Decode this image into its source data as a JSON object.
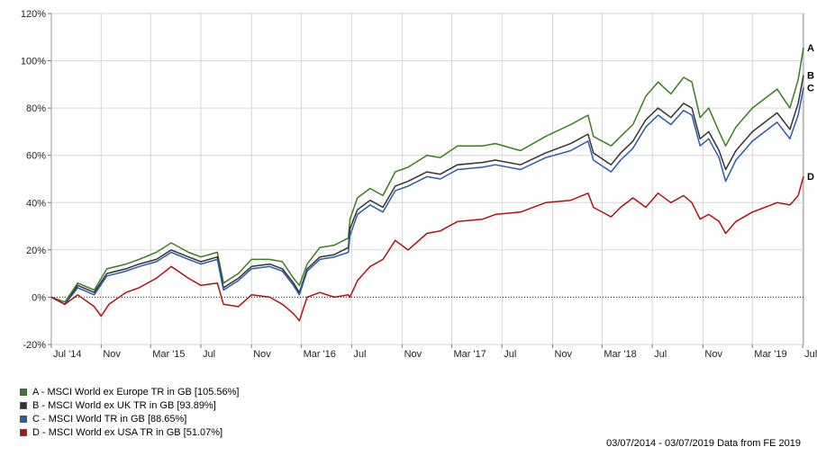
{
  "chart_data": {
    "type": "line",
    "date_range": [
      "2014-07-03",
      "2019-07-03"
    ],
    "ylim": [
      -20,
      120
    ],
    "y_ticks": [
      -20,
      0,
      20,
      40,
      60,
      80,
      100,
      120
    ],
    "y_tick_labels": [
      "-20%",
      "0%",
      "20%",
      "40%",
      "60%",
      "80%",
      "100%",
      "120%"
    ],
    "x_ticks": [
      "2014-07-03",
      "2014-11-01",
      "2015-03-01",
      "2015-07-01",
      "2015-11-01",
      "2016-03-01",
      "2016-07-01",
      "2016-11-01",
      "2017-03-01",
      "2017-07-01",
      "2017-11-01",
      "2018-03-01",
      "2018-07-01",
      "2018-11-01",
      "2019-03-01",
      "2019-07-01"
    ],
    "x_tick_labels": [
      "Jul '14",
      "Nov",
      "Mar '15",
      "Jul",
      "Nov",
      "Mar '16",
      "Jul",
      "Nov",
      "Mar '17",
      "Jul",
      "Nov",
      "Mar '18",
      "Jul",
      "Nov",
      "Mar '19",
      "Jul"
    ],
    "grid": true,
    "legend_position": "bottom-left",
    "series": [
      {
        "name": "A - MSCI World ex Europe TR in GB [105.56%]",
        "end_label": "A",
        "color": "#3a7d1e",
        "points": [
          [
            "2014-07-03",
            0
          ],
          [
            "2014-08-05",
            -2
          ],
          [
            "2014-09-05",
            6
          ],
          [
            "2014-10-15",
            3
          ],
          [
            "2014-11-15",
            12
          ],
          [
            "2014-12-31",
            14
          ],
          [
            "2015-02-01",
            16
          ],
          [
            "2015-03-15",
            19
          ],
          [
            "2015-04-20",
            23
          ],
          [
            "2015-06-01",
            19
          ],
          [
            "2015-07-01",
            17
          ],
          [
            "2015-08-10",
            19
          ],
          [
            "2015-08-25",
            6
          ],
          [
            "2015-09-30",
            10
          ],
          [
            "2015-11-01",
            16
          ],
          [
            "2015-12-15",
            16
          ],
          [
            "2016-01-15",
            15
          ],
          [
            "2016-02-11",
            8
          ],
          [
            "2016-02-25",
            5
          ],
          [
            "2016-03-15",
            14
          ],
          [
            "2016-04-15",
            21
          ],
          [
            "2016-05-20",
            22
          ],
          [
            "2016-06-23",
            25
          ],
          [
            "2016-06-27",
            33
          ],
          [
            "2016-07-15",
            42
          ],
          [
            "2016-08-15",
            46
          ],
          [
            "2016-09-15",
            43
          ],
          [
            "2016-10-15",
            53
          ],
          [
            "2016-11-15",
            55
          ],
          [
            "2016-12-31",
            60
          ],
          [
            "2017-02-01",
            59
          ],
          [
            "2017-03-15",
            64
          ],
          [
            "2017-05-15",
            64
          ],
          [
            "2017-06-15",
            65
          ],
          [
            "2017-08-15",
            62
          ],
          [
            "2017-10-15",
            68
          ],
          [
            "2017-12-15",
            73
          ],
          [
            "2018-01-26",
            77
          ],
          [
            "2018-02-08",
            68
          ],
          [
            "2018-03-23",
            64
          ],
          [
            "2018-04-15",
            68
          ],
          [
            "2018-05-15",
            73
          ],
          [
            "2018-06-15",
            85
          ],
          [
            "2018-07-15",
            91
          ],
          [
            "2018-08-15",
            86
          ],
          [
            "2018-09-15",
            93
          ],
          [
            "2018-10-05",
            91
          ],
          [
            "2018-10-25",
            76
          ],
          [
            "2018-11-15",
            80
          ],
          [
            "2018-12-10",
            70
          ],
          [
            "2018-12-26",
            64
          ],
          [
            "2019-01-20",
            72
          ],
          [
            "2019-03-01",
            80
          ],
          [
            "2019-04-30",
            88
          ],
          [
            "2019-05-31",
            80
          ],
          [
            "2019-06-20",
            92
          ],
          [
            "2019-07-03",
            105.56
          ]
        ]
      },
      {
        "name": "B - MSCI World ex UK TR in GB [93.89%]",
        "end_label": "B",
        "color": "#333333",
        "points": [
          [
            "2014-07-03",
            0
          ],
          [
            "2014-08-05",
            -3
          ],
          [
            "2014-09-05",
            5
          ],
          [
            "2014-10-15",
            2
          ],
          [
            "2014-11-15",
            10
          ],
          [
            "2014-12-31",
            12
          ],
          [
            "2015-02-01",
            14
          ],
          [
            "2015-03-15",
            16
          ],
          [
            "2015-04-20",
            20
          ],
          [
            "2015-06-01",
            17
          ],
          [
            "2015-07-01",
            15
          ],
          [
            "2015-08-10",
            17
          ],
          [
            "2015-08-25",
            4
          ],
          [
            "2015-09-30",
            8
          ],
          [
            "2015-11-01",
            13
          ],
          [
            "2015-12-15",
            14
          ],
          [
            "2016-01-15",
            12
          ],
          [
            "2016-02-11",
            6
          ],
          [
            "2016-02-25",
            2
          ],
          [
            "2016-03-15",
            12
          ],
          [
            "2016-04-15",
            17
          ],
          [
            "2016-05-20",
            18
          ],
          [
            "2016-06-23",
            21
          ],
          [
            "2016-06-27",
            29
          ],
          [
            "2016-07-15",
            37
          ],
          [
            "2016-08-15",
            41
          ],
          [
            "2016-09-15",
            38
          ],
          [
            "2016-10-15",
            47
          ],
          [
            "2016-11-15",
            49
          ],
          [
            "2016-12-31",
            53
          ],
          [
            "2017-02-01",
            52
          ],
          [
            "2017-03-15",
            56
          ],
          [
            "2017-05-15",
            57
          ],
          [
            "2017-06-15",
            58
          ],
          [
            "2017-08-15",
            56
          ],
          [
            "2017-10-15",
            61
          ],
          [
            "2017-12-15",
            65
          ],
          [
            "2018-01-26",
            69
          ],
          [
            "2018-02-08",
            61
          ],
          [
            "2018-03-23",
            56
          ],
          [
            "2018-04-15",
            61
          ],
          [
            "2018-05-15",
            66
          ],
          [
            "2018-06-15",
            75
          ],
          [
            "2018-07-15",
            80
          ],
          [
            "2018-08-15",
            76
          ],
          [
            "2018-09-15",
            82
          ],
          [
            "2018-10-05",
            80
          ],
          [
            "2018-10-25",
            67
          ],
          [
            "2018-11-15",
            70
          ],
          [
            "2018-12-10",
            62
          ],
          [
            "2018-12-26",
            54
          ],
          [
            "2019-01-20",
            62
          ],
          [
            "2019-03-01",
            70
          ],
          [
            "2019-04-30",
            78
          ],
          [
            "2019-05-31",
            71
          ],
          [
            "2019-06-20",
            82
          ],
          [
            "2019-07-03",
            93.89
          ]
        ]
      },
      {
        "name": "C - MSCI World TR in GB [88.65%]",
        "end_label": "C",
        "color": "#2a5aa8",
        "points": [
          [
            "2014-07-03",
            0
          ],
          [
            "2014-08-05",
            -3
          ],
          [
            "2014-09-05",
            4
          ],
          [
            "2014-10-15",
            1
          ],
          [
            "2014-11-15",
            9
          ],
          [
            "2014-12-31",
            11
          ],
          [
            "2015-02-01",
            13
          ],
          [
            "2015-03-15",
            15
          ],
          [
            "2015-04-20",
            19
          ],
          [
            "2015-06-01",
            16
          ],
          [
            "2015-07-01",
            14
          ],
          [
            "2015-08-10",
            16
          ],
          [
            "2015-08-25",
            3
          ],
          [
            "2015-09-30",
            7
          ],
          [
            "2015-11-01",
            12
          ],
          [
            "2015-12-15",
            13
          ],
          [
            "2016-01-15",
            11
          ],
          [
            "2016-02-11",
            5
          ],
          [
            "2016-02-25",
            1
          ],
          [
            "2016-03-15",
            11
          ],
          [
            "2016-04-15",
            16
          ],
          [
            "2016-05-20",
            17
          ],
          [
            "2016-06-23",
            19
          ],
          [
            "2016-06-27",
            26
          ],
          [
            "2016-07-15",
            35
          ],
          [
            "2016-08-15",
            39
          ],
          [
            "2016-09-15",
            36
          ],
          [
            "2016-10-15",
            45
          ],
          [
            "2016-11-15",
            47
          ],
          [
            "2016-12-31",
            51
          ],
          [
            "2017-02-01",
            50
          ],
          [
            "2017-03-15",
            54
          ],
          [
            "2017-05-15",
            55
          ],
          [
            "2017-06-15",
            56
          ],
          [
            "2017-08-15",
            54
          ],
          [
            "2017-10-15",
            59
          ],
          [
            "2017-12-15",
            62
          ],
          [
            "2018-01-26",
            66
          ],
          [
            "2018-02-08",
            58
          ],
          [
            "2018-03-23",
            53
          ],
          [
            "2018-04-15",
            58
          ],
          [
            "2018-05-15",
            63
          ],
          [
            "2018-06-15",
            72
          ],
          [
            "2018-07-15",
            77
          ],
          [
            "2018-08-15",
            73
          ],
          [
            "2018-09-15",
            79
          ],
          [
            "2018-10-05",
            77
          ],
          [
            "2018-10-25",
            64
          ],
          [
            "2018-11-15",
            67
          ],
          [
            "2018-12-10",
            59
          ],
          [
            "2018-12-26",
            49
          ],
          [
            "2019-01-20",
            58
          ],
          [
            "2019-03-01",
            66
          ],
          [
            "2019-04-30",
            74
          ],
          [
            "2019-05-31",
            67
          ],
          [
            "2019-06-20",
            77
          ],
          [
            "2019-07-03",
            88.65
          ]
        ]
      },
      {
        "name": "D - MSCI World ex USA TR in GB [51.07%]",
        "end_label": "D",
        "color": "#b01010",
        "points": [
          [
            "2014-07-03",
            0
          ],
          [
            "2014-08-05",
            -3
          ],
          [
            "2014-09-05",
            1
          ],
          [
            "2014-10-15",
            -4
          ],
          [
            "2014-11-01",
            -8
          ],
          [
            "2014-11-20",
            -3
          ],
          [
            "2014-12-31",
            2
          ],
          [
            "2015-02-01",
            4
          ],
          [
            "2015-03-15",
            8
          ],
          [
            "2015-04-20",
            13
          ],
          [
            "2015-06-01",
            8
          ],
          [
            "2015-07-01",
            5
          ],
          [
            "2015-08-10",
            6
          ],
          [
            "2015-08-25",
            -3
          ],
          [
            "2015-09-30",
            -4
          ],
          [
            "2015-11-01",
            1
          ],
          [
            "2015-12-15",
            0
          ],
          [
            "2016-01-15",
            -3
          ],
          [
            "2016-02-11",
            -7
          ],
          [
            "2016-02-25",
            -10
          ],
          [
            "2016-03-15",
            0
          ],
          [
            "2016-04-15",
            2
          ],
          [
            "2016-05-20",
            0
          ],
          [
            "2016-06-23",
            1
          ],
          [
            "2016-06-27",
            0
          ],
          [
            "2016-07-15",
            7
          ],
          [
            "2016-08-15",
            13
          ],
          [
            "2016-09-15",
            16
          ],
          [
            "2016-10-15",
            24
          ],
          [
            "2016-11-15",
            20
          ],
          [
            "2016-12-31",
            27
          ],
          [
            "2017-02-01",
            28
          ],
          [
            "2017-03-15",
            32
          ],
          [
            "2017-05-15",
            33
          ],
          [
            "2017-06-15",
            35
          ],
          [
            "2017-08-15",
            36
          ],
          [
            "2017-10-15",
            40
          ],
          [
            "2017-12-15",
            41
          ],
          [
            "2018-01-26",
            44
          ],
          [
            "2018-02-08",
            38
          ],
          [
            "2018-03-23",
            34
          ],
          [
            "2018-04-15",
            38
          ],
          [
            "2018-05-15",
            42
          ],
          [
            "2018-06-15",
            38
          ],
          [
            "2018-07-15",
            44
          ],
          [
            "2018-08-15",
            40
          ],
          [
            "2018-09-15",
            43
          ],
          [
            "2018-10-05",
            40
          ],
          [
            "2018-10-25",
            33
          ],
          [
            "2018-11-15",
            35
          ],
          [
            "2018-12-10",
            32
          ],
          [
            "2018-12-26",
            27
          ],
          [
            "2019-01-20",
            32
          ],
          [
            "2019-03-01",
            36
          ],
          [
            "2019-04-30",
            40
          ],
          [
            "2019-05-31",
            39
          ],
          [
            "2019-06-20",
            43
          ],
          [
            "2019-07-03",
            51.07
          ]
        ]
      }
    ]
  },
  "footer": {
    "text": "03/07/2014 - 03/07/2019 Data from FE 2019"
  }
}
